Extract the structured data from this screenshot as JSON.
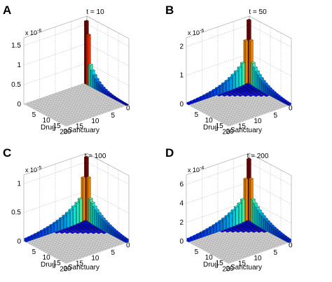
{
  "chart_data": [
    {
      "type": "bar3d",
      "panel": "A",
      "title": "t = 10",
      "xlabel": "Sanctuary",
      "ylabel": "Drug",
      "x_ticks": [
        "0",
        "5",
        "10",
        "15",
        "20"
      ],
      "y_ticks": [
        "0",
        "5",
        "10",
        "15",
        "20"
      ],
      "z_ticks": [
        "0",
        "0.5",
        "1",
        "1.5"
      ],
      "z_ticks_visible": [
        "0",
        "0.5",
        "1",
        "1.5"
      ],
      "z_multiplier_base": "x 10",
      "z_multiplier_exp": "-6",
      "zlim": [
        0,
        1.7
      ],
      "peak": 1.6,
      "ridge_scale": 0.55,
      "decay": 0.24,
      "ridge_dir": "drug"
    },
    {
      "type": "bar3d",
      "panel": "B",
      "title": "t = 50",
      "xlabel": "Sanctuary",
      "ylabel": "Drug",
      "x_ticks": [
        "0",
        "5",
        "10",
        "15",
        "20"
      ],
      "y_ticks": [
        "0",
        "5",
        "10",
        "15",
        "20"
      ],
      "z_ticks": [
        "0",
        "1",
        "2"
      ],
      "z_multiplier_base": "x 10",
      "z_multiplier_exp": "-6",
      "zlim": [
        0,
        2.3
      ],
      "peak": 2.2,
      "ridge_scale": 0.45,
      "decay": 0.15,
      "ridge_dir": "both"
    },
    {
      "type": "bar3d",
      "panel": "C",
      "title": "t = 100",
      "xlabel": "Sanctuary",
      "ylabel": "Drug",
      "x_ticks": [
        "0",
        "5",
        "10",
        "15",
        "20"
      ],
      "y_ticks": [
        "0",
        "5",
        "10",
        "15",
        "20"
      ],
      "z_ticks": [
        "0",
        "0.5",
        "1"
      ],
      "z_multiplier_base": "x 10",
      "z_multiplier_exp": "-5",
      "zlim": [
        0,
        1.15
      ],
      "peak": 1.1,
      "ridge_scale": 0.45,
      "decay": 0.12,
      "ridge_dir": "both"
    },
    {
      "type": "bar3d",
      "panel": "D",
      "title": "t = 200",
      "xlabel": "Sanctuary",
      "ylabel": "Drug",
      "x_ticks": [
        "0",
        "5",
        "10",
        "15",
        "20"
      ],
      "y_ticks": [
        "0",
        "5",
        "10",
        "15",
        "20"
      ],
      "z_ticks": [
        "0",
        "2",
        "4",
        "6"
      ],
      "z_multiplier_base": "x 10",
      "z_multiplier_exp": "-4",
      "zlim": [
        0,
        7
      ],
      "peak": 6.5,
      "ridge_scale": 0.45,
      "decay": 0.12,
      "ridge_dir": "both"
    }
  ]
}
